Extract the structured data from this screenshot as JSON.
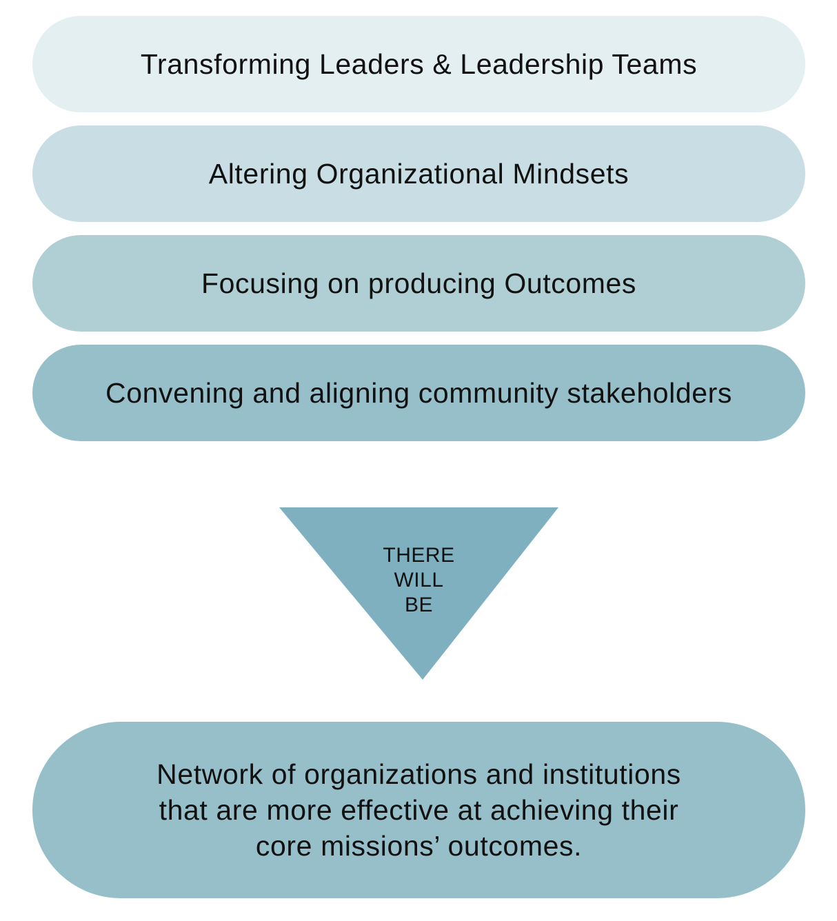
{
  "stages": [
    {
      "label": "Transforming Leaders & Leadership Teams",
      "color": "#e3eff1"
    },
    {
      "label": "Altering Organizational Mindsets",
      "color": "#c9dee4"
    },
    {
      "label": "Focusing on producing Outcomes",
      "color": "#b0cfd5"
    },
    {
      "label": "Convening and aligning community stakeholders",
      "color": "#96bfc9"
    }
  ],
  "connector": {
    "lines": [
      "THERE",
      "WILL",
      "BE"
    ],
    "color": "#7fb0bf"
  },
  "outcome": {
    "lines": [
      "Network of organizations and institutions",
      "that are more effective at achieving their",
      "core missions’ outcomes."
    ],
    "color": "#96bfc9"
  }
}
